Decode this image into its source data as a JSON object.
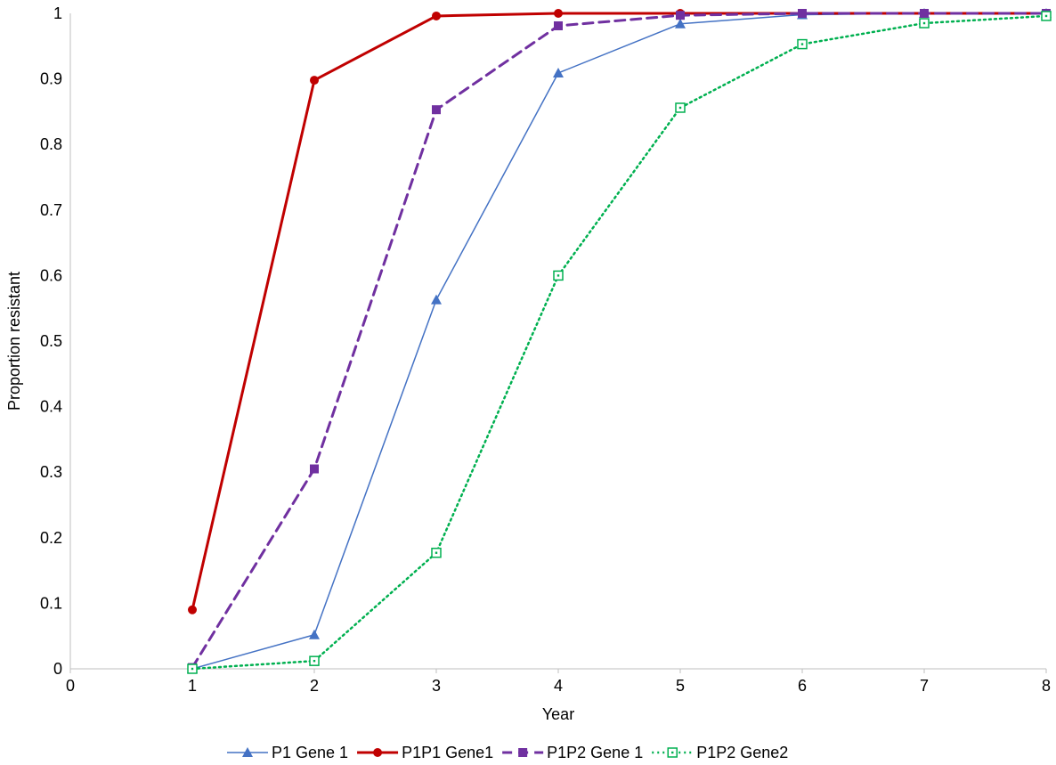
{
  "chart_data": {
    "type": "line",
    "title": "",
    "xlabel": "Year",
    "ylabel": "Proportion resistant",
    "xlim": [
      0,
      8
    ],
    "ylim": [
      0,
      1
    ],
    "x_ticks": [
      0,
      1,
      2,
      3,
      4,
      5,
      6,
      7,
      8
    ],
    "y_ticks": [
      0,
      0.1,
      0.2,
      0.3,
      0.4,
      0.5,
      0.6,
      0.7,
      0.8,
      0.9,
      1
    ],
    "grid": false,
    "legend_position": "bottom",
    "series": [
      {
        "name": "P1 Gene 1",
        "color": "#4472c4",
        "line_style": "solid",
        "marker": "triangle",
        "x": [
          1,
          2,
          3,
          4,
          5,
          6,
          7,
          8
        ],
        "y": [
          0.0,
          0.052,
          0.563,
          0.909,
          0.984,
          0.998,
          1.0,
          1.0
        ]
      },
      {
        "name": "P1P1 Gene1",
        "color": "#c00000",
        "line_style": "solid-thick",
        "marker": "circle",
        "x": [
          1,
          2,
          3,
          4,
          5,
          6,
          7,
          8
        ],
        "y": [
          0.09,
          0.898,
          0.996,
          1.0,
          1.0,
          1.0,
          1.0,
          1.0
        ]
      },
      {
        "name": "P1P2 Gene 1",
        "color": "#7030a0",
        "line_style": "dashed",
        "marker": "square",
        "x": [
          1,
          2,
          3,
          4,
          5,
          6,
          7,
          8
        ],
        "y": [
          0.002,
          0.305,
          0.853,
          0.981,
          0.997,
          1.0,
          1.0,
          1.0
        ]
      },
      {
        "name": "P1P2 Gene2",
        "color": "#00b050",
        "line_style": "dotted",
        "marker": "hollow-square",
        "x": [
          1,
          2,
          3,
          4,
          5,
          6,
          7,
          8
        ],
        "y": [
          0.0,
          0.012,
          0.177,
          0.6,
          0.856,
          0.953,
          0.985,
          0.996
        ]
      }
    ]
  }
}
